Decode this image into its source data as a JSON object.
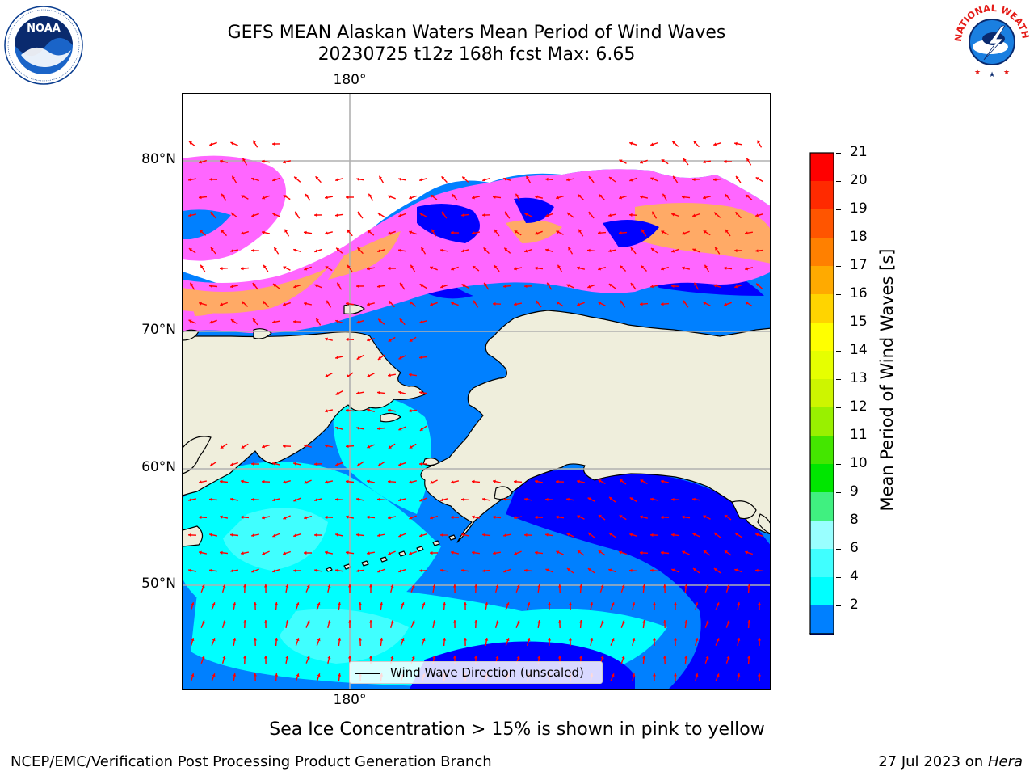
{
  "header": {
    "title_line1": "GEFS MEAN Alaskan Waters Mean Period of Wind Waves",
    "title_line2": "20230725 t12z 168h fcst   Max: 6.65"
  },
  "logos": {
    "left": {
      "name": "NOAA",
      "ring_text": "NATIONAL OCEANIC AND ATMOSPHERIC ADMINISTRATION · U.S. DEPARTMENT OF COMMERCE",
      "color": "#0a3d8f"
    },
    "right": {
      "name": "NATIONAL WEATHER SERVICE",
      "color": "#e41b17"
    }
  },
  "map": {
    "lat_labels": [
      "80°N",
      "70°N",
      "60°N",
      "50°N"
    ],
    "lon_label_top": "180°",
    "lon_label_bottom": "180°",
    "legend_label": "Wind Wave Direction (unscaled)",
    "land_color": "#efeedc",
    "arrow_color": "#ff0000"
  },
  "colorbar": {
    "title": "Mean Period of Wind Waves [s]",
    "ticks": [
      "21",
      "20",
      "19",
      "18",
      "17",
      "16",
      "15",
      "14",
      "13",
      "12",
      "11",
      "10",
      "9",
      "8",
      "6",
      "4",
      "2"
    ],
    "colors": [
      "#ff0000",
      "#ff2a00",
      "#ff5500",
      "#ff8000",
      "#ffaa00",
      "#ffd400",
      "#ffff00",
      "#e6ff00",
      "#cdf500",
      "#99f000",
      "#44e600",
      "#00e600",
      "#40f080",
      "#99ffff",
      "#40ffff",
      "#00ffff",
      "#0080ff"
    ],
    "under_color": "#0000ff"
  },
  "footer": {
    "note": "Sea Ice Concentration > 15% is shown in pink to yellow",
    "left": "NCEP/EMC/Verification Post Processing Product Generation Branch",
    "right_prefix": "27 Jul 2023 on ",
    "right_host": "Hera"
  }
}
